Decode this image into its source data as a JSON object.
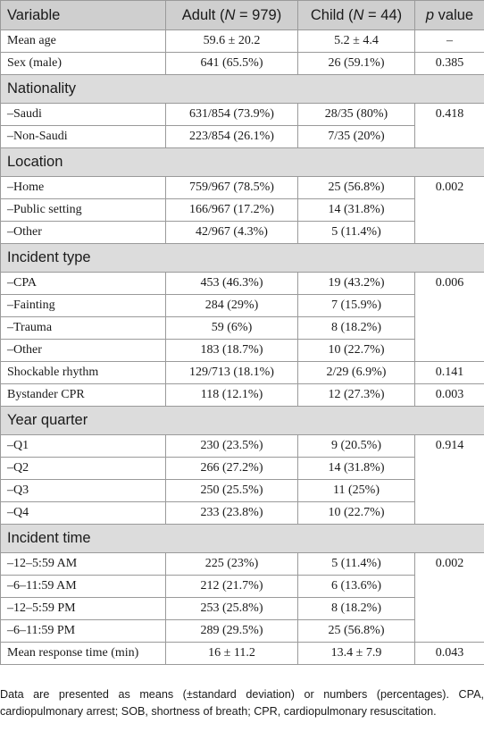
{
  "header": {
    "variable": "Variable",
    "adult_prefix": "Adult (",
    "adult_n": "N",
    "adult_suffix": " = 979)",
    "child_prefix": "Child (",
    "child_n": "N",
    "child_suffix": " = 44)",
    "p_letter": "p",
    "p_suffix": " value"
  },
  "rows": {
    "mean_age": {
      "label": "Mean age",
      "adult": "59.6 ± 20.2",
      "child": "5.2 ± 4.4",
      "p": "–"
    },
    "sex": {
      "label": "Sex (male)",
      "adult": "641 (65.5%)",
      "child": "26 (59.1%)",
      "p": "0.385"
    },
    "nationality": {
      "title": "Nationality",
      "p": "0.418",
      "items": [
        {
          "label": "–Saudi",
          "adult": "631/854 (73.9%)",
          "child": "28/35 (80%)"
        },
        {
          "label": "–Non-Saudi",
          "adult": "223/854 (26.1%)",
          "child": "7/35 (20%)"
        }
      ]
    },
    "location": {
      "title": "Location",
      "p": "0.002",
      "items": [
        {
          "label": "–Home",
          "adult": "759/967 (78.5%)",
          "child": "25 (56.8%)"
        },
        {
          "label": "–Public setting",
          "adult": "166/967 (17.2%)",
          "child": "14 (31.8%)"
        },
        {
          "label": "–Other",
          "adult": "42/967 (4.3%)",
          "child": "5 (11.4%)"
        }
      ]
    },
    "incident_type": {
      "title": "Incident type",
      "p": "0.006",
      "items": [
        {
          "label": "–CPA",
          "adult": "453 (46.3%)",
          "child": "19 (43.2%)"
        },
        {
          "label": "–Fainting",
          "adult": "284 (29%)",
          "child": "7 (15.9%)"
        },
        {
          "label": "–Trauma",
          "adult": "59 (6%)",
          "child": "8 (18.2%)"
        },
        {
          "label": "–Other",
          "adult": "183 (18.7%)",
          "child": "10 (22.7%)"
        }
      ]
    },
    "shockable": {
      "label": "Shockable rhythm",
      "adult": "129/713 (18.1%)",
      "child": "2/29 (6.9%)",
      "p": "0.141"
    },
    "bystander": {
      "label": "Bystander CPR",
      "adult": "118 (12.1%)",
      "child": "12 (27.3%)",
      "p": "0.003"
    },
    "year_quarter": {
      "title": "Year quarter",
      "p": "0.914",
      "items": [
        {
          "label": "–Q1",
          "adult": "230 (23.5%)",
          "child": "9 (20.5%)"
        },
        {
          "label": "–Q2",
          "adult": "266 (27.2%)",
          "child": "14 (31.8%)"
        },
        {
          "label": "–Q3",
          "adult": "250 (25.5%)",
          "child": "11 (25%)"
        },
        {
          "label": "–Q4",
          "adult": "233 (23.8%)",
          "child": "10 (22.7%)"
        }
      ]
    },
    "incident_time": {
      "title": "Incident time",
      "p": "0.002",
      "items": [
        {
          "label": "–12–5:59 AM",
          "adult": "225 (23%)",
          "child": "5 (11.4%)"
        },
        {
          "label": "–6–11:59 AM",
          "adult": "212 (21.7%)",
          "child": "6 (13.6%)"
        },
        {
          "label": "–12–5:59 PM",
          "adult": "253 (25.8%)",
          "child": "8 (18.2%)"
        },
        {
          "label": "–6–11:59 PM",
          "adult": "289 (29.5%)",
          "child": "25 (56.8%)"
        }
      ]
    },
    "response_time": {
      "label": "Mean response time (min)",
      "adult": "16 ± 11.2",
      "child": "13.4 ± 7.9",
      "p": "0.043"
    }
  },
  "footnote": "Data are presented as means (±standard deviation) or numbers (percentages). CPA, cardiopulmonary arrest; SOB, shortness of breath; CPR, cardiopulmonary resuscitation."
}
